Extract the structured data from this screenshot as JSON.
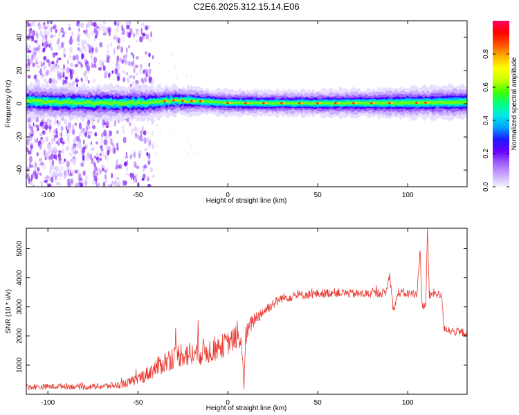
{
  "title": "C2E6.2025.312.15.14.E06",
  "colors": {
    "series": "#e8362e",
    "core": "#00ff66",
    "peak": "#ff2020",
    "axis": "#000000"
  },
  "chart_data": [
    {
      "type": "heatmap",
      "xlabel": "Height of straight line (km)",
      "ylabel": "Frequency (Hz)",
      "xlim": [
        -112,
        133
      ],
      "ylim": [
        -50,
        50
      ],
      "xticks": [
        -100,
        -50,
        0,
        50,
        100
      ],
      "yticks": [
        -40,
        -20,
        0,
        20,
        40
      ],
      "colorbar": {
        "label": "Normalized spectral amplitude",
        "ticks": [
          "0.0",
          "0.2",
          "0.4",
          "0.6",
          "0.8"
        ],
        "tick_values": [
          0.0,
          0.2,
          0.4,
          0.6,
          0.8
        ],
        "range": [
          0,
          1
        ],
        "colormap": [
          "#f3f3ff",
          "#c9a8ff",
          "#a060ff",
          "#6a00ff",
          "#1a1aff",
          "#00a0ff",
          "#00e8e8",
          "#00ff80",
          "#40ff00",
          "#c8ff00",
          "#ffff00",
          "#ffb000",
          "#ff5000",
          "#ff0000",
          "#ff0060"
        ]
      },
      "features": {
        "center_line_freq_hz": [
          {
            "x": -110,
            "f": 1.5
          },
          {
            "x": -80,
            "f": 0.5
          },
          {
            "x": -60,
            "f": 0.5
          },
          {
            "x": -45,
            "f": 0.5
          },
          {
            "x": -30,
            "f": 2.0
          },
          {
            "x": -15,
            "f": 1.5
          },
          {
            "x": 0,
            "f": 0.5
          },
          {
            "x": 50,
            "f": 0.3
          },
          {
            "x": 100,
            "f": 0.5
          },
          {
            "x": 133,
            "f": 1.0
          }
        ],
        "band_halfwidth_hz": [
          {
            "x": -110,
            "w": 4
          },
          {
            "x": -50,
            "w": 4
          },
          {
            "x": -10,
            "w": 3
          },
          {
            "x": 40,
            "w": 3
          },
          {
            "x": 133,
            "w": 4
          }
        ],
        "noise_region_km": [
          -112,
          -45
        ],
        "peak_markers_km": [
          -35,
          -30,
          -25,
          -20,
          -15,
          0,
          10,
          20,
          30,
          40,
          50,
          60,
          70,
          80,
          90,
          105,
          110
        ]
      }
    },
    {
      "type": "line",
      "xlabel": "Height of straight line (km)",
      "ylabel": "SNR (10 * v/v)",
      "xlim": [
        -112,
        133
      ],
      "ylim": [
        0,
        5700
      ],
      "xticks": [
        -100,
        -50,
        0,
        50,
        100
      ],
      "yticks": [
        1000,
        2000,
        3000,
        4000,
        5000
      ],
      "series": [
        {
          "name": "SNR",
          "x": [
            -112,
            -100,
            -90,
            -80,
            -70,
            -60,
            -55,
            -50,
            -45,
            -40,
            -35,
            -30,
            -25,
            -20,
            -15,
            -10,
            -5,
            0,
            5,
            8,
            9,
            10,
            12,
            15,
            20,
            25,
            30,
            40,
            50,
            60,
            70,
            80,
            88,
            90,
            92,
            95,
            100,
            105,
            107,
            108,
            110,
            111,
            112,
            113,
            115,
            119,
            120,
            125,
            133
          ],
          "values": [
            250,
            260,
            280,
            250,
            270,
            320,
            400,
            520,
            700,
            900,
            1100,
            1300,
            1400,
            1350,
            1450,
            1500,
            1600,
            1750,
            1950,
            1600,
            300,
            2000,
            2300,
            2600,
            2850,
            3100,
            3300,
            3400,
            3450,
            3500,
            3450,
            3450,
            3500,
            4100,
            2900,
            3500,
            3450,
            3450,
            4800,
            3000,
            3100,
            5600,
            3400,
            3400,
            3500,
            3350,
            2300,
            2150,
            2100
          ],
          "noise_amplitude": [
            100,
            100,
            100,
            100,
            110,
            130,
            160,
            200,
            260,
            320,
            380,
            420,
            450,
            450,
            450,
            450,
            420,
            400,
            380,
            300,
            200,
            350,
            300,
            250,
            200,
            180,
            160,
            150,
            150,
            150,
            150,
            150,
            150,
            150,
            150,
            150,
            150,
            150,
            150,
            150,
            150,
            150,
            150,
            150,
            150,
            150,
            150,
            150,
            150
          ]
        }
      ]
    }
  ]
}
